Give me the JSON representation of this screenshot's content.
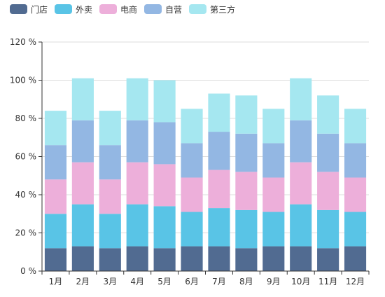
{
  "chart_data": {
    "type": "bar",
    "stacked": true,
    "categories": [
      "1月",
      "2月",
      "3月",
      "4月",
      "5月",
      "6月",
      "7月",
      "8月",
      "9月",
      "10月",
      "11月",
      "12月"
    ],
    "series": [
      {
        "name": "门店",
        "color": "#516b91",
        "values": [
          12,
          13,
          12,
          13,
          12,
          13,
          13,
          12,
          13,
          13,
          12,
          13
        ]
      },
      {
        "name": "外卖",
        "color": "#59c4e6",
        "values": [
          18,
          22,
          18,
          22,
          22,
          18,
          20,
          20,
          18,
          22,
          20,
          18
        ]
      },
      {
        "name": "电商",
        "color": "#edafda",
        "values": [
          18,
          22,
          18,
          22,
          22,
          18,
          20,
          20,
          18,
          22,
          20,
          18
        ]
      },
      {
        "name": "自营",
        "color": "#93b7e3",
        "values": [
          18,
          22,
          18,
          22,
          22,
          18,
          20,
          20,
          18,
          22,
          20,
          18
        ]
      },
      {
        "name": "第三方",
        "color": "#a5e7f0",
        "values": [
          18,
          22,
          18,
          22,
          22,
          18,
          20,
          20,
          18,
          22,
          20,
          18
        ]
      }
    ],
    "ylim": [
      0,
      120
    ],
    "y_ticks": [
      "0 %",
      "20 %",
      "40 %",
      "60 %",
      "80 %",
      "100 %",
      "120 %"
    ],
    "y_tick_values": [
      0,
      20,
      40,
      60,
      80,
      100,
      120
    ],
    "grid": true,
    "legend_position": "top-left"
  }
}
